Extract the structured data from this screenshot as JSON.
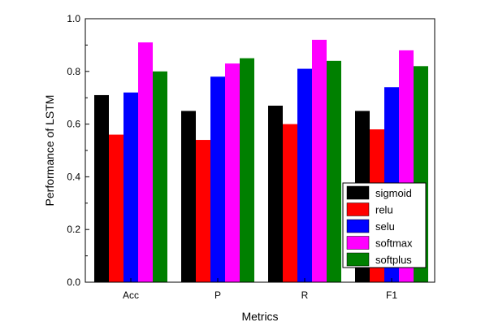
{
  "chart_data": {
    "type": "bar",
    "title": "",
    "xlabel": "Metrics",
    "ylabel": "Performance of LSTM",
    "categories": [
      "Acc",
      "P",
      "R",
      "F1"
    ],
    "ylim": [
      0.0,
      1.0
    ],
    "yticks": [
      "0.0",
      "0.2",
      "0.4",
      "0.6",
      "0.8",
      "1.0"
    ],
    "grid": false,
    "legend_position": "bottom-right",
    "series": [
      {
        "name": "sigmoid",
        "color": "#000000",
        "values": [
          0.71,
          0.65,
          0.67,
          0.65
        ]
      },
      {
        "name": "relu",
        "color": "#ff0000",
        "values": [
          0.56,
          0.54,
          0.6,
          0.58
        ]
      },
      {
        "name": "selu",
        "color": "#0000ff",
        "values": [
          0.72,
          0.78,
          0.81,
          0.74
        ]
      },
      {
        "name": "softmax",
        "color": "#ff00ff",
        "values": [
          0.91,
          0.83,
          0.92,
          0.88
        ]
      },
      {
        "name": "softplus",
        "color": "#008000",
        "values": [
          0.8,
          0.85,
          0.84,
          0.82
        ]
      }
    ]
  }
}
